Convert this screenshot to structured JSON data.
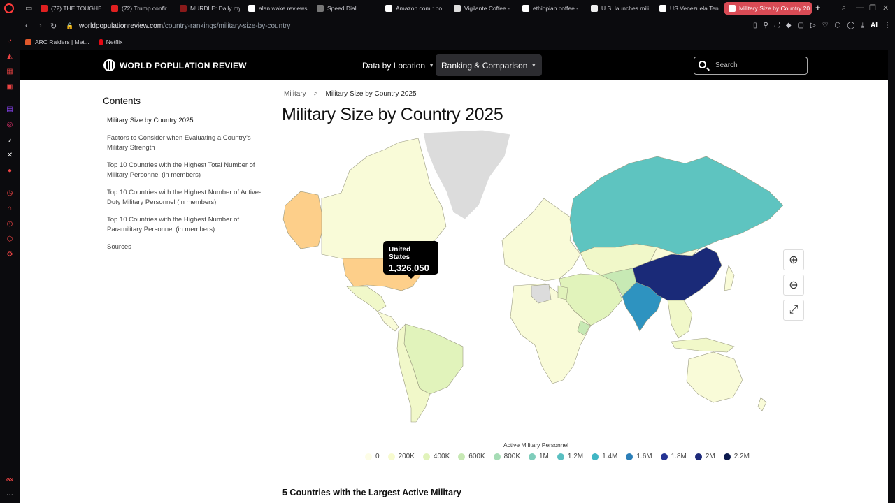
{
  "browser": {
    "tabs": [
      {
        "label": "(72) THE TOUGHE",
        "fav": "#e02020",
        "icon": "youtube-icon"
      },
      {
        "label": "(72) Trump confir",
        "fav": "#e02020",
        "icon": "youtube-icon"
      },
      {
        "label": "MURDLE: Daily my",
        "fav": "#8a1a1a",
        "icon": "murdle-icon"
      },
      {
        "label": "alan wake reviews",
        "fav": "#ffffff",
        "icon": "google-icon"
      },
      {
        "label": "Speed Dial",
        "fav": "#777777",
        "icon": "speed-dial-icon"
      },
      {
        "label": "Amazon.com : po",
        "fav": "#ffffff",
        "icon": "amazon-icon"
      },
      {
        "label": "Vigilante Coffee -",
        "fav": "#dddddd",
        "icon": "vigilante-icon"
      },
      {
        "label": "ethiopian coffee -",
        "fav": "#ffffff",
        "icon": "google-icon"
      },
      {
        "label": "U.S. launches mili",
        "fav": "#eeeeee",
        "icon": "news-icon"
      },
      {
        "label": "US Venezuela Ten",
        "fav": "#ffffff",
        "icon": "google-icon"
      },
      {
        "label": "Military Size by Country 20",
        "fav": "#ffffff",
        "icon": "wpr-icon",
        "active": true
      }
    ],
    "url_domain": "worldpopulationreview.com",
    "url_path": "/country-rankings/military-size-by-country",
    "ai_label": "AI",
    "bookmarks": [
      {
        "label": "ARC Raiders | Met...",
        "fav": "#e0582b"
      },
      {
        "label": "Netflix",
        "fav": "#e50914"
      }
    ],
    "sidebar_gx_label": "GX"
  },
  "site": {
    "logo_text": "WORLD POPULATION REVIEW",
    "nav": [
      {
        "label": "Data by Location"
      },
      {
        "label": "Ranking & Comparison",
        "selected": true
      }
    ],
    "search_placeholder": "Search"
  },
  "toc": {
    "heading": "Contents",
    "items": [
      "Military Size by Country 2025",
      "Factors to Consider when Evaluating a Country's Military Strength",
      "Top 10 Countries with the Highest Total Number of Military Personnel (in members)",
      "Top 10 Countries with the Highest Number of Active-Duty Military Personnel (in members)",
      "Top 10 Countries with the Highest Number of Paramilitary Personnel (in members)",
      "Sources"
    ]
  },
  "breadcrumb": {
    "parent": "Military",
    "current": "Military Size by Country 2025"
  },
  "page_title": "Military Size by Country 2025",
  "map": {
    "tooltip_country": "United States",
    "tooltip_value": "1,326,050",
    "legend_title": "Active Military Personnel",
    "legend": [
      {
        "label": "0",
        "color": "#fdfde6"
      },
      {
        "label": "200K",
        "color": "#f7fbcf"
      },
      {
        "label": "400K",
        "color": "#e1f3bb"
      },
      {
        "label": "600K",
        "color": "#c7e9b4"
      },
      {
        "label": "800K",
        "color": "#a6dcb5"
      },
      {
        "label": "1M",
        "color": "#7fcdbb"
      },
      {
        "label": "1.2M",
        "color": "#59bfc1"
      },
      {
        "label": "1.4M",
        "color": "#41b6c4"
      },
      {
        "label": "1.6M",
        "color": "#2c7fb8"
      },
      {
        "label": "1.8M",
        "color": "#253494"
      },
      {
        "label": "2M",
        "color": "#1d2a7a"
      },
      {
        "label": "2.2M",
        "color": "#0c1a4e"
      }
    ],
    "colors": {
      "usa": "#fdcf8a",
      "alaska": "#fdcf8a",
      "russia": "#5ec4c0",
      "china": "#1a2a78",
      "india": "#2e93c0",
      "default_land": "#f9fbd8",
      "greenland": "#dcdcdc",
      "ocean": "#ffffff"
    }
  },
  "next_section_title": "5 Countries with the Largest Active Military"
}
